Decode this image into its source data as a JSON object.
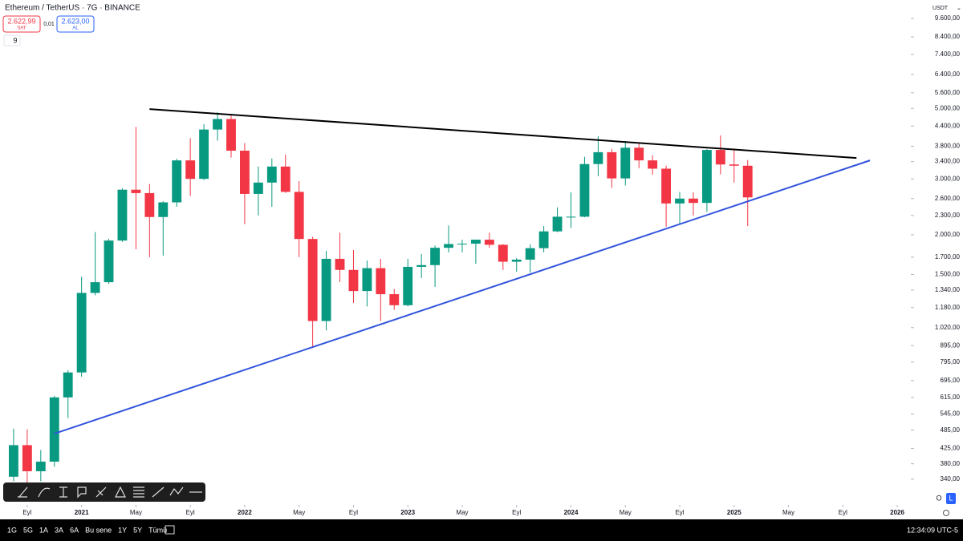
{
  "header": {
    "symbol": "Ethereum / TetherUS · 7G · BINANCE",
    "sell_price": "2.622,99",
    "sell_label": "SAT",
    "spread": "0,01",
    "buy_price": "2.623,00",
    "buy_label": "AL",
    "indicator_count": "9",
    "currency": "USDT"
  },
  "chart_data": {
    "type": "candlestick",
    "log_scale": true,
    "up_color": "#089981",
    "down_color": "#f23645",
    "x": [
      "2020-08",
      "2020-09",
      "2020-10",
      "2020-11",
      "2020-12",
      "2021-01",
      "2021-02",
      "2021-03",
      "2021-04",
      "2021-05",
      "2021-06",
      "2021-07",
      "2021-08",
      "2021-09",
      "2021-10",
      "2021-11",
      "2021-12",
      "2022-01",
      "2022-02",
      "2022-03",
      "2022-04",
      "2022-05",
      "2022-06",
      "2022-07",
      "2022-08",
      "2022-09",
      "2022-10",
      "2022-11",
      "2022-12",
      "2023-01",
      "2023-02",
      "2023-03",
      "2023-04",
      "2023-05",
      "2023-06",
      "2023-07",
      "2023-08",
      "2023-09",
      "2023-10",
      "2023-11",
      "2023-12",
      "2024-01",
      "2024-02",
      "2024-03",
      "2024-04",
      "2024-05",
      "2024-06",
      "2024-07",
      "2024-08",
      "2024-09",
      "2024-10",
      "2024-11",
      "2024-12",
      "2025-01",
      "2025-02"
    ],
    "open": [
      346,
      435,
      360,
      386,
      615,
      737,
      1312,
      1418,
      1918,
      2773,
      2706,
      2275,
      2530,
      3430,
      3000,
      4290,
      4630,
      3680,
      2690,
      2920,
      3280,
      2730,
      1940,
      1070,
      1680,
      1550,
      1330,
      1570,
      1300,
      1200,
      1585,
      1605,
      1820,
      1870,
      1875,
      1930,
      1860,
      1645,
      1670,
      1815,
      2050,
      2280,
      2280,
      3340,
      3640,
      3010,
      3760,
      3430,
      3230,
      2510,
      2600,
      2520,
      3700,
      3330,
      3300
    ],
    "high": [
      490,
      488,
      420,
      622,
      750,
      1475,
      2040,
      1943,
      2800,
      4372,
      2890,
      2550,
      3470,
      4030,
      4460,
      4870,
      4780,
      3890,
      3280,
      3480,
      3580,
      2950,
      1970,
      1780,
      2030,
      1790,
      1660,
      1680,
      1350,
      1680,
      1740,
      1850,
      2140,
      1930,
      1930,
      2030,
      1870,
      1690,
      1865,
      2130,
      2440,
      2720,
      3520,
      4090,
      3730,
      3950,
      3890,
      3560,
      3300,
      2730,
      2720,
      3720,
      4110,
      3740,
      3440
    ],
    "low": [
      335,
      308,
      335,
      372,
      530,
      715,
      1290,
      1400,
      1900,
      1800,
      1700,
      1720,
      2450,
      2650,
      2970,
      3960,
      3500,
      2160,
      2300,
      2450,
      2710,
      1700,
      880,
      1000,
      1420,
      1220,
      1190,
      1070,
      1160,
      1190,
      1460,
      1370,
      1760,
      1760,
      1620,
      1820,
      1550,
      1530,
      1520,
      1760,
      2040,
      2100,
      2270,
      3060,
      2810,
      2860,
      3240,
      3090,
      2120,
      2150,
      2300,
      2360,
      3100,
      2920,
      2130
    ],
    "close": [
      435,
      360,
      386,
      615,
      737,
      1312,
      1418,
      1918,
      2773,
      2706,
      2275,
      2530,
      3430,
      3000,
      4290,
      4630,
      3680,
      2690,
      2920,
      3280,
      2730,
      1940,
      1070,
      1680,
      1550,
      1330,
      1570,
      1300,
      1200,
      1585,
      1605,
      1820,
      1870,
      1875,
      1930,
      1860,
      1645,
      1670,
      1815,
      2050,
      2280,
      2280,
      3340,
      3640,
      3010,
      3760,
      3430,
      3230,
      2510,
      2600,
      2520,
      3700,
      3330,
      3300,
      2623
    ],
    "xlim": [
      "2020-07",
      "2026-02"
    ],
    "xticks": [
      {
        "value": "2020-09",
        "label": "Eyl"
      },
      {
        "value": "2021-01",
        "label": "2021"
      },
      {
        "value": "2021-05",
        "label": "May"
      },
      {
        "value": "2021-09",
        "label": "Eyl"
      },
      {
        "value": "2022-01",
        "label": "2022"
      },
      {
        "value": "2022-05",
        "label": "May"
      },
      {
        "value": "2022-09",
        "label": "Eyl"
      },
      {
        "value": "2023-01",
        "label": "2023"
      },
      {
        "value": "2023-05",
        "label": "May"
      },
      {
        "value": "2023-09",
        "label": "Eyl"
      },
      {
        "value": "2024-01",
        "label": "2024"
      },
      {
        "value": "2024-05",
        "label": "May"
      },
      {
        "value": "2024-09",
        "label": "Eyl"
      },
      {
        "value": "2025-01",
        "label": "2025"
      },
      {
        "value": "2025-05",
        "label": "May"
      },
      {
        "value": "2025-09",
        "label": "Eyl"
      },
      {
        "value": "2026-01",
        "label": "2026"
      }
    ],
    "ylim": [
      282,
      10975
    ],
    "yticks": [
      {
        "value": 9600,
        "label": "9.600,00"
      },
      {
        "value": 8400,
        "label": "8.400,00"
      },
      {
        "value": 7400,
        "label": "7.400,00"
      },
      {
        "value": 6400,
        "label": "6.400,00"
      },
      {
        "value": 5600,
        "label": "5.600,00"
      },
      {
        "value": 5000,
        "label": "5.000,00"
      },
      {
        "value": 4400,
        "label": "4.400,00"
      },
      {
        "value": 3800,
        "label": "3.800,00"
      },
      {
        "value": 3400,
        "label": "3.400,00"
      },
      {
        "value": 3000,
        "label": "3.000,00"
      },
      {
        "value": 2600,
        "label": "2.600,00"
      },
      {
        "value": 2300,
        "label": "2.300,00"
      },
      {
        "value": 2000,
        "label": "2.000,00"
      },
      {
        "value": 1700,
        "label": "1.700,00"
      },
      {
        "value": 1500,
        "label": "1.500,00"
      },
      {
        "value": 1340,
        "label": "1.340,00"
      },
      {
        "value": 1180,
        "label": "1.180,00"
      },
      {
        "value": 1020,
        "label": "1.020,00"
      },
      {
        "value": 895,
        "label": "895,00"
      },
      {
        "value": 795,
        "label": "795,00"
      },
      {
        "value": 695,
        "label": "695,00"
      },
      {
        "value": 615,
        "label": "615,00"
      },
      {
        "value": 545,
        "label": "545,00"
      },
      {
        "value": 485,
        "label": "485,00"
      },
      {
        "value": 425,
        "label": "425,00"
      },
      {
        "value": 380,
        "label": "380,00"
      },
      {
        "value": 340,
        "label": "340,00"
      }
    ],
    "trendlines": [
      {
        "color": "#000000",
        "x": [
          "2021-06",
          "2025-10"
        ],
        "y": [
          4977,
          3490
        ]
      },
      {
        "color": "#3355dd",
        "x": [
          "2020-11",
          "2025-11"
        ],
        "y": [
          473,
          3430
        ]
      }
    ]
  },
  "toolbar": {
    "ranges": [
      "1G",
      "5G",
      "1A",
      "3A",
      "6A",
      "Bu sene",
      "1Y",
      "5Y",
      "Tümü"
    ],
    "clock": "12:34:09 UTC-5",
    "scale_buttons": [
      "O",
      "L"
    ]
  }
}
